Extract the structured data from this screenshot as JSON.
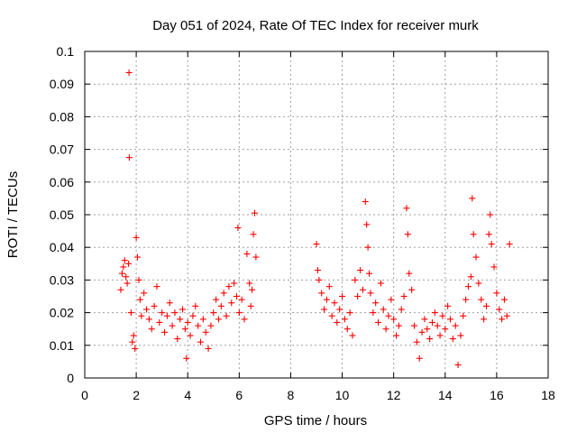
{
  "chart_data": {
    "type": "scatter",
    "title": "Day 051 of 2024, Rate Of TEC Index for receiver murk",
    "xlabel": "GPS time / hours",
    "ylabel": "ROTI / TECUs",
    "xlim": [
      0,
      18
    ],
    "ylim": [
      0,
      0.1
    ],
    "xticks": [
      "0",
      "2",
      "4",
      "6",
      "8",
      "10",
      "12",
      "14",
      "16",
      "18"
    ],
    "yticks": [
      "0",
      "0.01",
      "0.02",
      "0.03",
      "0.04",
      "0.05",
      "0.06",
      "0.07",
      "0.08",
      "0.09",
      "0.1"
    ],
    "grid": true,
    "marker": "+",
    "color": "#ff0000",
    "points": [
      [
        1.4,
        0.027
      ],
      [
        1.45,
        0.032
      ],
      [
        1.5,
        0.034
      ],
      [
        1.55,
        0.036
      ],
      [
        1.6,
        0.031
      ],
      [
        1.65,
        0.029
      ],
      [
        1.7,
        0.035
      ],
      [
        1.72,
        0.0935
      ],
      [
        1.73,
        0.0675
      ],
      [
        1.8,
        0.02
      ],
      [
        1.85,
        0.011
      ],
      [
        1.9,
        0.013
      ],
      [
        1.95,
        0.009
      ],
      [
        2.0,
        0.043
      ],
      [
        2.05,
        0.037
      ],
      [
        2.1,
        0.03
      ],
      [
        2.15,
        0.024
      ],
      [
        2.2,
        0.019
      ],
      [
        2.3,
        0.026
      ],
      [
        2.4,
        0.021
      ],
      [
        2.5,
        0.018
      ],
      [
        2.6,
        0.015
      ],
      [
        2.7,
        0.022
      ],
      [
        2.8,
        0.028
      ],
      [
        2.9,
        0.017
      ],
      [
        3.0,
        0.02
      ],
      [
        3.1,
        0.014
      ],
      [
        3.2,
        0.019
      ],
      [
        3.3,
        0.023
      ],
      [
        3.4,
        0.016
      ],
      [
        3.5,
        0.02
      ],
      [
        3.6,
        0.012
      ],
      [
        3.7,
        0.018
      ],
      [
        3.8,
        0.021
      ],
      [
        3.9,
        0.015
      ],
      [
        3.95,
        0.006
      ],
      [
        4.0,
        0.017
      ],
      [
        4.1,
        0.013
      ],
      [
        4.2,
        0.019
      ],
      [
        4.3,
        0.022
      ],
      [
        4.4,
        0.016
      ],
      [
        4.5,
        0.011
      ],
      [
        4.6,
        0.018
      ],
      [
        4.7,
        0.014
      ],
      [
        4.8,
        0.009
      ],
      [
        4.9,
        0.016
      ],
      [
        5.0,
        0.02
      ],
      [
        5.1,
        0.024
      ],
      [
        5.2,
        0.018
      ],
      [
        5.3,
        0.022
      ],
      [
        5.4,
        0.026
      ],
      [
        5.5,
        0.019
      ],
      [
        5.6,
        0.028
      ],
      [
        5.7,
        0.023
      ],
      [
        5.8,
        0.029
      ],
      [
        5.9,
        0.025
      ],
      [
        5.95,
        0.046
      ],
      [
        6.0,
        0.02
      ],
      [
        6.1,
        0.024
      ],
      [
        6.2,
        0.018
      ],
      [
        6.3,
        0.038
      ],
      [
        6.4,
        0.029
      ],
      [
        6.45,
        0.022
      ],
      [
        6.5,
        0.027
      ],
      [
        6.55,
        0.044
      ],
      [
        6.6,
        0.0505
      ],
      [
        6.65,
        0.037
      ],
      [
        9.0,
        0.041
      ],
      [
        9.05,
        0.033
      ],
      [
        9.1,
        0.03
      ],
      [
        9.2,
        0.026
      ],
      [
        9.3,
        0.021
      ],
      [
        9.4,
        0.024
      ],
      [
        9.5,
        0.028
      ],
      [
        9.6,
        0.019
      ],
      [
        9.7,
        0.023
      ],
      [
        9.8,
        0.017
      ],
      [
        9.9,
        0.021
      ],
      [
        10.0,
        0.025
      ],
      [
        10.1,
        0.018
      ],
      [
        10.2,
        0.015
      ],
      [
        10.3,
        0.02
      ],
      [
        10.4,
        0.013
      ],
      [
        10.5,
        0.03
      ],
      [
        10.6,
        0.025
      ],
      [
        10.7,
        0.033
      ],
      [
        10.8,
        0.027
      ],
      [
        10.9,
        0.054
      ],
      [
        10.95,
        0.047
      ],
      [
        11.0,
        0.04
      ],
      [
        11.05,
        0.032
      ],
      [
        11.1,
        0.026
      ],
      [
        11.2,
        0.02
      ],
      [
        11.3,
        0.023
      ],
      [
        11.4,
        0.017
      ],
      [
        11.5,
        0.029
      ],
      [
        11.6,
        0.021
      ],
      [
        11.7,
        0.015
      ],
      [
        11.8,
        0.019
      ],
      [
        11.9,
        0.024
      ],
      [
        12.0,
        0.018
      ],
      [
        12.1,
        0.013
      ],
      [
        12.2,
        0.016
      ],
      [
        12.3,
        0.021
      ],
      [
        12.4,
        0.025
      ],
      [
        12.5,
        0.052
      ],
      [
        12.55,
        0.044
      ],
      [
        12.6,
        0.032
      ],
      [
        12.7,
        0.027
      ],
      [
        12.8,
        0.016
      ],
      [
        12.9,
        0.011
      ],
      [
        13.0,
        0.006
      ],
      [
        13.1,
        0.014
      ],
      [
        13.2,
        0.018
      ],
      [
        13.3,
        0.015
      ],
      [
        13.4,
        0.012
      ],
      [
        13.5,
        0.017
      ],
      [
        13.6,
        0.02
      ],
      [
        13.7,
        0.016
      ],
      [
        13.8,
        0.013
      ],
      [
        13.9,
        0.019
      ],
      [
        14.0,
        0.015
      ],
      [
        14.1,
        0.022
      ],
      [
        14.2,
        0.018
      ],
      [
        14.3,
        0.012
      ],
      [
        14.4,
        0.016
      ],
      [
        14.5,
        0.004
      ],
      [
        14.6,
        0.013
      ],
      [
        14.7,
        0.019
      ],
      [
        14.8,
        0.024
      ],
      [
        14.9,
        0.028
      ],
      [
        15.0,
        0.031
      ],
      [
        15.05,
        0.055
      ],
      [
        15.1,
        0.044
      ],
      [
        15.2,
        0.037
      ],
      [
        15.3,
        0.029
      ],
      [
        15.4,
        0.024
      ],
      [
        15.5,
        0.018
      ],
      [
        15.6,
        0.022
      ],
      [
        15.7,
        0.044
      ],
      [
        15.75,
        0.05
      ],
      [
        15.8,
        0.041
      ],
      [
        15.9,
        0.034
      ],
      [
        16.0,
        0.026
      ],
      [
        16.1,
        0.021
      ],
      [
        16.2,
        0.018
      ],
      [
        16.3,
        0.024
      ],
      [
        16.4,
        0.019
      ],
      [
        16.5,
        0.041
      ]
    ]
  }
}
